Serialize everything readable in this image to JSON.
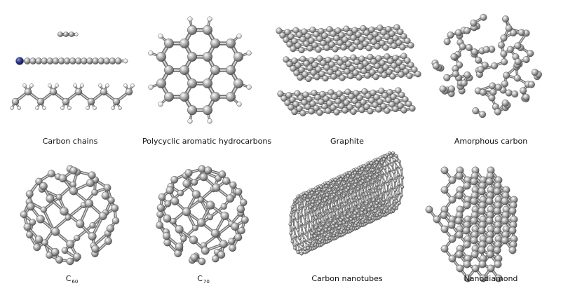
{
  "colors": {
    "atom_light": "#ffffff",
    "atom_mid": "#b4b4b4",
    "atom_dark": "#555555",
    "bond": "#9a9a9a",
    "bond_edge": "#6e6e6e",
    "hydrogen": "#e6e6e6",
    "nitrogen": "#2b3a8f",
    "background": "#ffffff"
  },
  "panels": [
    {
      "id": "carbon-chains",
      "caption": "Carbon chains"
    },
    {
      "id": "pah",
      "caption": "Polycyclic aromatic hydrocarbons"
    },
    {
      "id": "graphite",
      "caption": "Graphite"
    },
    {
      "id": "amorphous",
      "caption": "Amorphous carbon"
    },
    {
      "id": "c60",
      "caption_main": "C",
      "caption_sub": "60"
    },
    {
      "id": "c70",
      "caption_main": "C",
      "caption_sub": "70"
    },
    {
      "id": "nanotubes",
      "caption": "Carbon nanotubes"
    },
    {
      "id": "nanodiamond",
      "caption": "Nanodiamond"
    }
  ]
}
